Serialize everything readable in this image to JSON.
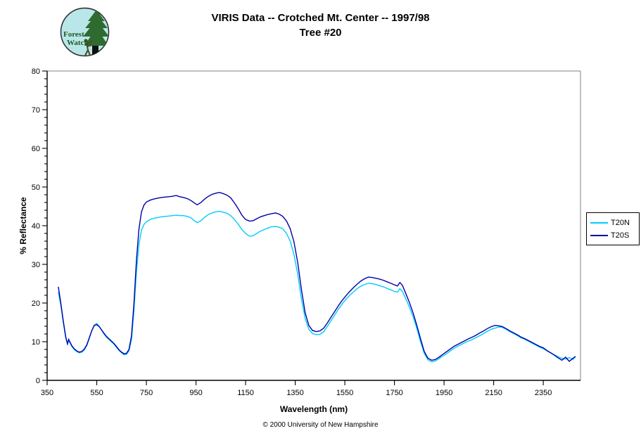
{
  "page": {
    "title_line1": "VIRIS Data -- Crotched Mt. Center -- 1997/98",
    "title_line2": "Tree #20",
    "footer": "© 2000 University of New Hampshire"
  },
  "logo": {
    "text_line1": "Forest",
    "text_line2": "Watch",
    "bg_color": "#b9e7e9",
    "tree_color": "#2f6b2f",
    "trunk_color": "#101010",
    "text_color": "#1d5c1d"
  },
  "chart_data": {
    "type": "line",
    "title": "VIRIS Data -- Crotched Mt. Center -- 1997/98 | Tree #20",
    "xlabel": "Wavelength (nm)",
    "ylabel": "% Reflectance",
    "xlim": [
      350,
      2500
    ],
    "ylim": [
      0,
      80
    ],
    "x_ticks": [
      350,
      550,
      750,
      950,
      1150,
      1350,
      1550,
      1750,
      1950,
      2150,
      2350
    ],
    "y_ticks": [
      0,
      10,
      20,
      30,
      40,
      50,
      60,
      70,
      80
    ],
    "y_minor_unit": 2,
    "grid": false,
    "legend_position": "right",
    "axis_color": "#000000",
    "plot_border_color": "#808080",
    "x": [
      395,
      405,
      415,
      425,
      432,
      437,
      442,
      450,
      460,
      470,
      480,
      490,
      500,
      510,
      520,
      530,
      540,
      550,
      560,
      570,
      580,
      590,
      600,
      610,
      620,
      630,
      640,
      650,
      660,
      670,
      680,
      690,
      700,
      710,
      720,
      730,
      740,
      750,
      765,
      780,
      795,
      810,
      825,
      840,
      855,
      870,
      885,
      900,
      915,
      930,
      945,
      955,
      970,
      985,
      1000,
      1015,
      1030,
      1045,
      1060,
      1075,
      1090,
      1105,
      1120,
      1135,
      1150,
      1165,
      1180,
      1195,
      1210,
      1225,
      1240,
      1255,
      1270,
      1285,
      1300,
      1315,
      1330,
      1345,
      1360,
      1375,
      1390,
      1405,
      1420,
      1435,
      1450,
      1465,
      1480,
      1495,
      1510,
      1525,
      1540,
      1555,
      1570,
      1585,
      1600,
      1615,
      1630,
      1645,
      1660,
      1675,
      1690,
      1705,
      1720,
      1735,
      1750,
      1762,
      1772,
      1782,
      1795,
      1810,
      1825,
      1840,
      1855,
      1870,
      1885,
      1900,
      1915,
      1930,
      1945,
      1960,
      1975,
      1990,
      2005,
      2020,
      2035,
      2050,
      2065,
      2080,
      2095,
      2110,
      2125,
      2140,
      2155,
      2170,
      2185,
      2200,
      2215,
      2230,
      2245,
      2260,
      2275,
      2290,
      2305,
      2320,
      2335,
      2350,
      2365,
      2380,
      2395,
      2410,
      2425,
      2440,
      2455,
      2470,
      2480
    ],
    "series": [
      {
        "name": "T20N",
        "color": "#00CCFF",
        "values": [
          22.8,
          19.5,
          15.0,
          11.0,
          9.3,
          10.4,
          9.7,
          8.7,
          7.9,
          7.4,
          7.1,
          7.3,
          7.9,
          9.0,
          10.9,
          12.9,
          14.3,
          14.7,
          14.0,
          12.9,
          11.9,
          11.1,
          10.5,
          9.9,
          9.3,
          8.5,
          7.7,
          7.1,
          6.6,
          6.7,
          7.6,
          10.5,
          18.0,
          28.0,
          35.0,
          38.8,
          40.3,
          41.0,
          41.6,
          41.9,
          42.1,
          42.3,
          42.4,
          42.5,
          42.6,
          42.7,
          42.6,
          42.6,
          42.4,
          42.0,
          41.2,
          40.8,
          41.3,
          42.2,
          42.9,
          43.3,
          43.6,
          43.7,
          43.5,
          43.2,
          42.6,
          41.6,
          40.4,
          39.0,
          38.0,
          37.3,
          37.4,
          38.0,
          38.6,
          39.0,
          39.4,
          39.7,
          39.8,
          39.6,
          39.2,
          38.0,
          36.0,
          32.5,
          27.5,
          21.0,
          16.0,
          13.2,
          12.1,
          11.8,
          11.9,
          12.6,
          14.0,
          15.5,
          17.0,
          18.5,
          19.8,
          21.0,
          22.0,
          22.9,
          23.7,
          24.4,
          24.8,
          25.1,
          25.0,
          24.8,
          24.5,
          24.2,
          23.8,
          23.4,
          23.0,
          22.8,
          23.7,
          23.0,
          21.2,
          19.0,
          16.5,
          13.5,
          10.0,
          7.0,
          5.3,
          4.8,
          5.0,
          5.6,
          6.3,
          6.9,
          7.6,
          8.3,
          8.8,
          9.3,
          9.8,
          10.2,
          10.6,
          11.1,
          11.6,
          12.1,
          12.7,
          13.2,
          13.5,
          13.8,
          13.7,
          13.2,
          12.6,
          12.1,
          11.6,
          11.0,
          10.6,
          10.1,
          9.6,
          9.1,
          8.6,
          8.2,
          7.6,
          7.1,
          6.6,
          6.1,
          5.7,
          5.5,
          5.9,
          5.4,
          6.1
        ]
      },
      {
        "name": "T20S",
        "color": "#0000A8",
        "values": [
          24.2,
          20.0,
          15.4,
          11.3,
          9.5,
          10.6,
          9.9,
          8.9,
          8.1,
          7.6,
          7.3,
          7.5,
          8.1,
          9.2,
          11.0,
          12.9,
          14.2,
          14.4,
          13.9,
          13.0,
          12.1,
          11.3,
          10.7,
          10.1,
          9.5,
          8.7,
          7.9,
          7.3,
          6.9,
          7.0,
          8.0,
          11.5,
          20.0,
          31.0,
          39.0,
          43.5,
          45.3,
          46.1,
          46.6,
          46.9,
          47.1,
          47.3,
          47.4,
          47.5,
          47.6,
          47.8,
          47.5,
          47.3,
          47.0,
          46.5,
          45.8,
          45.4,
          46.0,
          46.9,
          47.6,
          48.1,
          48.4,
          48.6,
          48.3,
          47.9,
          47.2,
          45.9,
          44.4,
          42.7,
          41.6,
          41.2,
          41.3,
          41.8,
          42.3,
          42.6,
          42.9,
          43.1,
          43.3,
          43.0,
          42.4,
          41.2,
          39.2,
          35.8,
          30.5,
          23.5,
          17.5,
          14.2,
          12.9,
          12.6,
          12.8,
          13.5,
          14.9,
          16.4,
          17.9,
          19.4,
          20.7,
          21.9,
          23.0,
          24.0,
          24.9,
          25.7,
          26.3,
          26.7,
          26.6,
          26.4,
          26.2,
          25.9,
          25.5,
          25.1,
          24.7,
          24.4,
          25.3,
          24.6,
          22.6,
          20.2,
          17.5,
          14.3,
          10.8,
          7.5,
          5.7,
          5.2,
          5.4,
          6.0,
          6.7,
          7.4,
          8.1,
          8.8,
          9.3,
          9.8,
          10.3,
          10.8,
          11.2,
          11.7,
          12.3,
          12.8,
          13.4,
          13.9,
          14.2,
          14.1,
          13.9,
          13.4,
          12.8,
          12.3,
          11.8,
          11.2,
          10.8,
          10.3,
          9.8,
          9.3,
          8.8,
          8.4,
          7.7,
          7.1,
          6.5,
          5.8,
          5.2,
          6.0,
          4.9,
          5.7,
          6.2
        ]
      }
    ]
  }
}
